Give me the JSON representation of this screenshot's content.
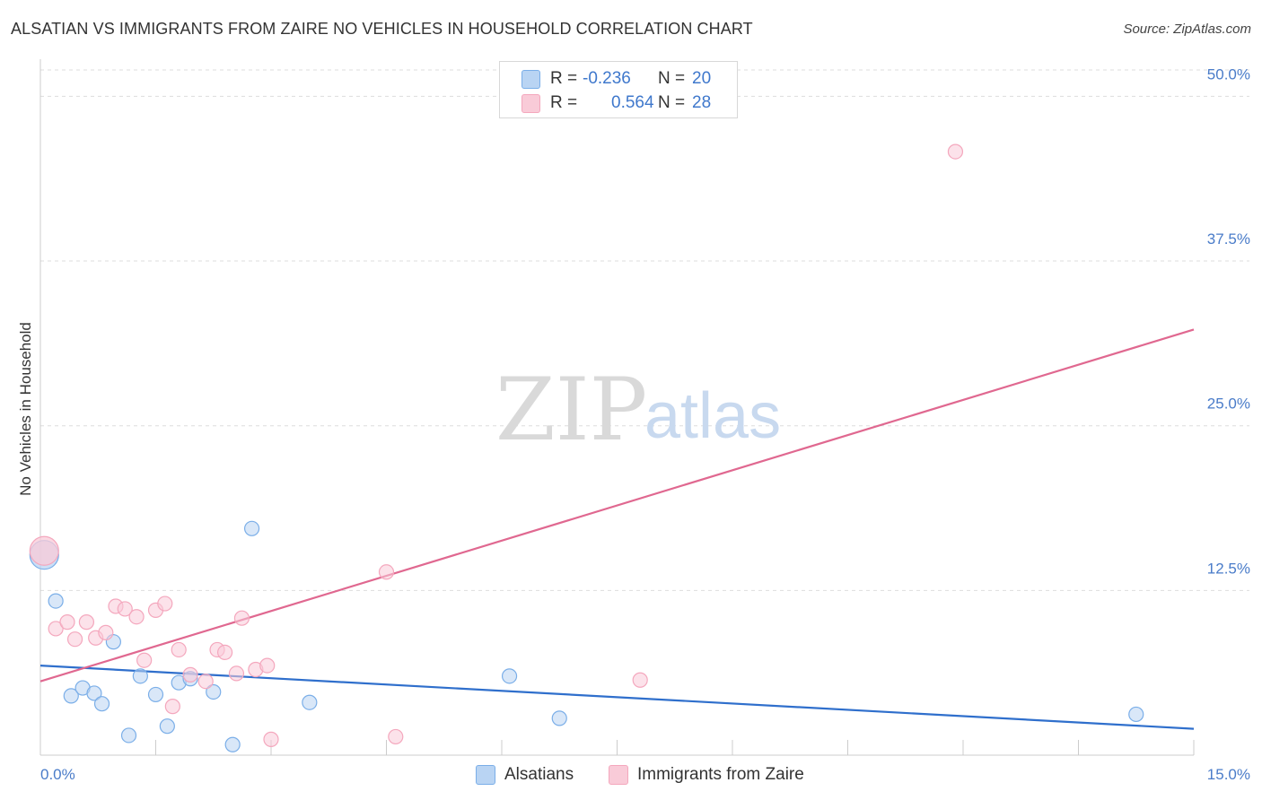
{
  "chart_data": {
    "type": "scatter",
    "title": "ALSATIAN VS IMMIGRANTS FROM ZAIRE NO VEHICLES IN HOUSEHOLD CORRELATION CHART",
    "source": "Source: ZipAtlas.com",
    "xlabel": "",
    "ylabel": "No Vehicles in Household",
    "xlim": [
      0,
      15
    ],
    "ylim": [
      0,
      52
    ],
    "x_tick_labels": [
      "0.0%",
      "15.0%"
    ],
    "y_ticks": [
      12.5,
      25.0,
      37.5,
      50.0
    ],
    "y_tick_labels": [
      "12.5%",
      "25.0%",
      "37.5%",
      "50.0%"
    ],
    "watermark": {
      "zip": "ZIP",
      "atlas": "atlas"
    },
    "legend": {
      "r_label": "R =",
      "n_label": "N ="
    },
    "series": [
      {
        "name": "Alsatians",
        "color": "#7aaee8",
        "fill": "#b9d4f3",
        "line_color": "#2f6fcc",
        "r_value": "-0.236",
        "n_value": "20",
        "points": [
          [
            0.05,
            15.2
          ],
          [
            0.2,
            11.7
          ],
          [
            0.4,
            4.5
          ],
          [
            0.55,
            5.1
          ],
          [
            0.7,
            4.7
          ],
          [
            0.8,
            3.9
          ],
          [
            0.95,
            8.6
          ],
          [
            1.15,
            1.5
          ],
          [
            1.3,
            6.0
          ],
          [
            1.5,
            4.6
          ],
          [
            1.65,
            2.2
          ],
          [
            1.8,
            5.5
          ],
          [
            1.95,
            5.8
          ],
          [
            2.25,
            4.8
          ],
          [
            2.5,
            0.8
          ],
          [
            2.75,
            17.2
          ],
          [
            3.5,
            4.0
          ],
          [
            6.1,
            6.0
          ],
          [
            6.75,
            2.8
          ],
          [
            14.25,
            3.1
          ]
        ],
        "trend": [
          [
            0,
            6.8
          ],
          [
            15,
            2.0
          ]
        ]
      },
      {
        "name": "Immigrants from Zaire",
        "color": "#f4a7bd",
        "fill": "#f9cbd8",
        "line_color": "#e06890",
        "r_value": "0.564",
        "n_value": "28",
        "points": [
          [
            0.05,
            15.5
          ],
          [
            0.2,
            9.6
          ],
          [
            0.35,
            10.1
          ],
          [
            0.45,
            8.8
          ],
          [
            0.6,
            10.1
          ],
          [
            0.72,
            8.9
          ],
          [
            0.85,
            9.3
          ],
          [
            0.98,
            11.3
          ],
          [
            1.1,
            11.1
          ],
          [
            1.25,
            10.5
          ],
          [
            1.35,
            7.2
          ],
          [
            1.5,
            11.0
          ],
          [
            1.62,
            11.5
          ],
          [
            1.72,
            3.7
          ],
          [
            1.8,
            8.0
          ],
          [
            1.95,
            6.1
          ],
          [
            2.15,
            5.6
          ],
          [
            2.3,
            8.0
          ],
          [
            2.4,
            7.8
          ],
          [
            2.55,
            6.2
          ],
          [
            2.62,
            10.4
          ],
          [
            2.8,
            6.5
          ],
          [
            2.95,
            6.8
          ],
          [
            3.0,
            1.2
          ],
          [
            4.5,
            13.9
          ],
          [
            4.62,
            1.4
          ],
          [
            7.8,
            5.7
          ],
          [
            11.9,
            45.8
          ]
        ],
        "trend": [
          [
            0,
            5.6
          ],
          [
            15,
            32.3
          ]
        ]
      }
    ]
  }
}
